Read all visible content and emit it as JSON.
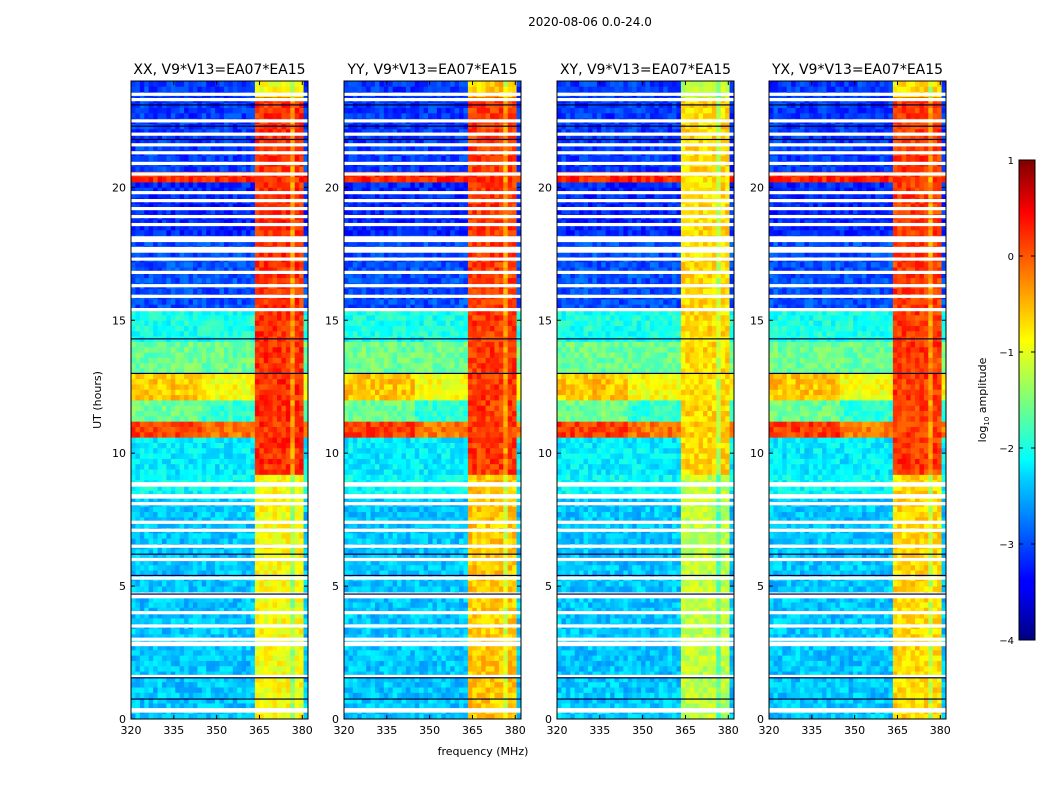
{
  "chart_data": {
    "type": "heatmap",
    "suptitle": "2020-08-06 0.0-24.0",
    "xlabel": "frequency (MHz)",
    "ylabel": "UT (hours)",
    "xlim": [
      320,
      382
    ],
    "ylim": [
      0,
      24
    ],
    "xticks": [
      320,
      335,
      350,
      365,
      380
    ],
    "yticks": [
      0,
      5,
      10,
      15,
      20
    ],
    "colorbar": {
      "label_main": "log",
      "label_sub": "10",
      "label_tail": " amplitude",
      "range": [
        -4,
        1
      ],
      "ticks": [
        1,
        0,
        -1,
        -2,
        -3,
        -4
      ],
      "tick_labels": [
        "1",
        "0",
        "−1",
        "−2",
        "−3",
        "−4"
      ],
      "colormap": "jet"
    },
    "panels": [
      {
        "title": "XX, V9*V13=EA07*EA15",
        "rfi_band_mhz": [
          363,
          380
        ],
        "rfi_level_day": 0.15,
        "rfi_level_night": -0.9
      },
      {
        "title": "YY, V9*V13=EA07*EA15",
        "rfi_band_mhz": [
          363,
          380
        ],
        "rfi_level_day": 0.1,
        "rfi_level_night": -0.6
      },
      {
        "title": "XY, V9*V13=EA07*EA15",
        "rfi_band_mhz": [
          363,
          380
        ],
        "rfi_level_day": -0.7,
        "rfi_level_night": -1.2
      },
      {
        "title": "YX, V9*V13=EA07*EA15",
        "rfi_band_mhz": [
          363,
          380
        ],
        "rfi_level_day": 0.1,
        "rfi_level_night": -0.7
      }
    ],
    "background_level_night": -2.4,
    "background_level_day": -3.0,
    "flagged_hours": [
      0.3,
      0.35,
      1.6,
      2.8,
      2.85,
      3.0,
      3.5,
      4.0,
      4.6,
      4.7,
      5.3,
      6.0,
      6.5,
      7.1,
      7.4,
      8.1,
      8.35,
      8.4,
      8.8,
      8.85,
      15.4,
      15.9,
      16.3,
      16.8,
      17.3,
      17.6,
      17.7,
      18.0,
      18.05,
      18.1,
      18.6,
      18.9,
      19.2,
      19.5,
      19.8,
      20.5,
      20.9,
      21.3,
      21.6,
      22.0,
      22.5,
      23.3,
      23.5
    ],
    "dark_lines_hours": [
      0.75,
      1.55,
      4.7,
      5.4,
      6.2,
      13.0,
      14.3,
      21.8,
      22.3,
      23.1
    ]
  }
}
